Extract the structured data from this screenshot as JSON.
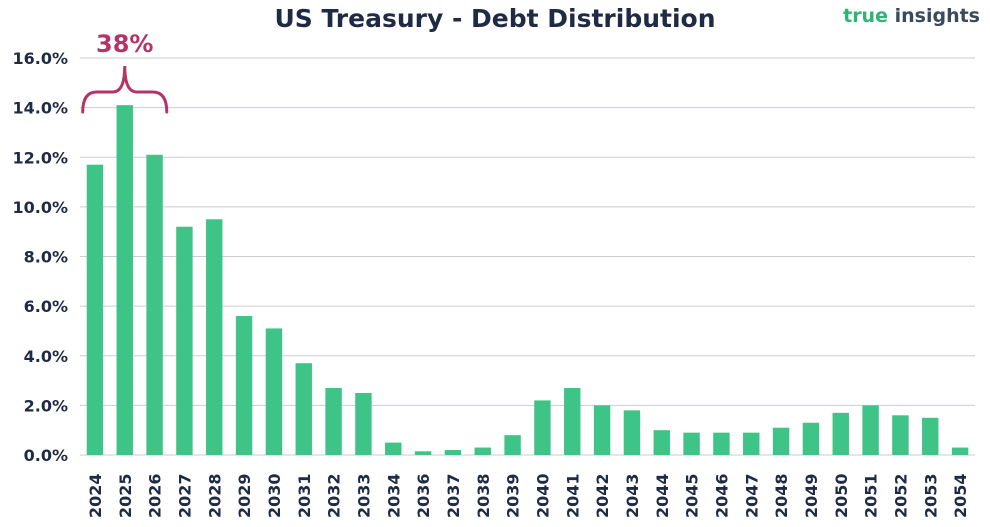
{
  "title": "US Treasury - Debt Distribution",
  "brand": {
    "part1": "true",
    "part2": "insights"
  },
  "annotation": {
    "text": "38%",
    "years": [
      "2024",
      "2026"
    ],
    "color": "#b53468"
  },
  "colors": {
    "bar": "#3ec486",
    "grid": "#c9cdd2",
    "text": "#1f2a44"
  },
  "chart_data": {
    "type": "bar",
    "title": "US Treasury - Debt Distribution",
    "xlabel": "",
    "ylabel": "",
    "ylim": [
      0,
      16
    ],
    "y_ticks": [
      "0.0%",
      "2.0%",
      "4.0%",
      "6.0%",
      "8.0%",
      "10.0%",
      "12.0%",
      "14.0%",
      "16.0%"
    ],
    "grid": true,
    "categories": [
      "2024",
      "2025",
      "2026",
      "2027",
      "2028",
      "2029",
      "2030",
      "2031",
      "2032",
      "2033",
      "2034",
      "2036",
      "2037",
      "2038",
      "2039",
      "2040",
      "2041",
      "2042",
      "2043",
      "2044",
      "2045",
      "2046",
      "2047",
      "2048",
      "2049",
      "2050",
      "2051",
      "2052",
      "2053",
      "2054"
    ],
    "values": [
      11.7,
      14.1,
      12.1,
      9.2,
      9.5,
      5.6,
      5.1,
      3.7,
      2.7,
      2.5,
      0.5,
      0.15,
      0.2,
      0.3,
      0.8,
      2.2,
      2.7,
      2.0,
      1.8,
      1.0,
      0.9,
      0.9,
      0.9,
      1.1,
      1.3,
      1.7,
      2.0,
      1.6,
      1.5,
      0.3
    ]
  }
}
